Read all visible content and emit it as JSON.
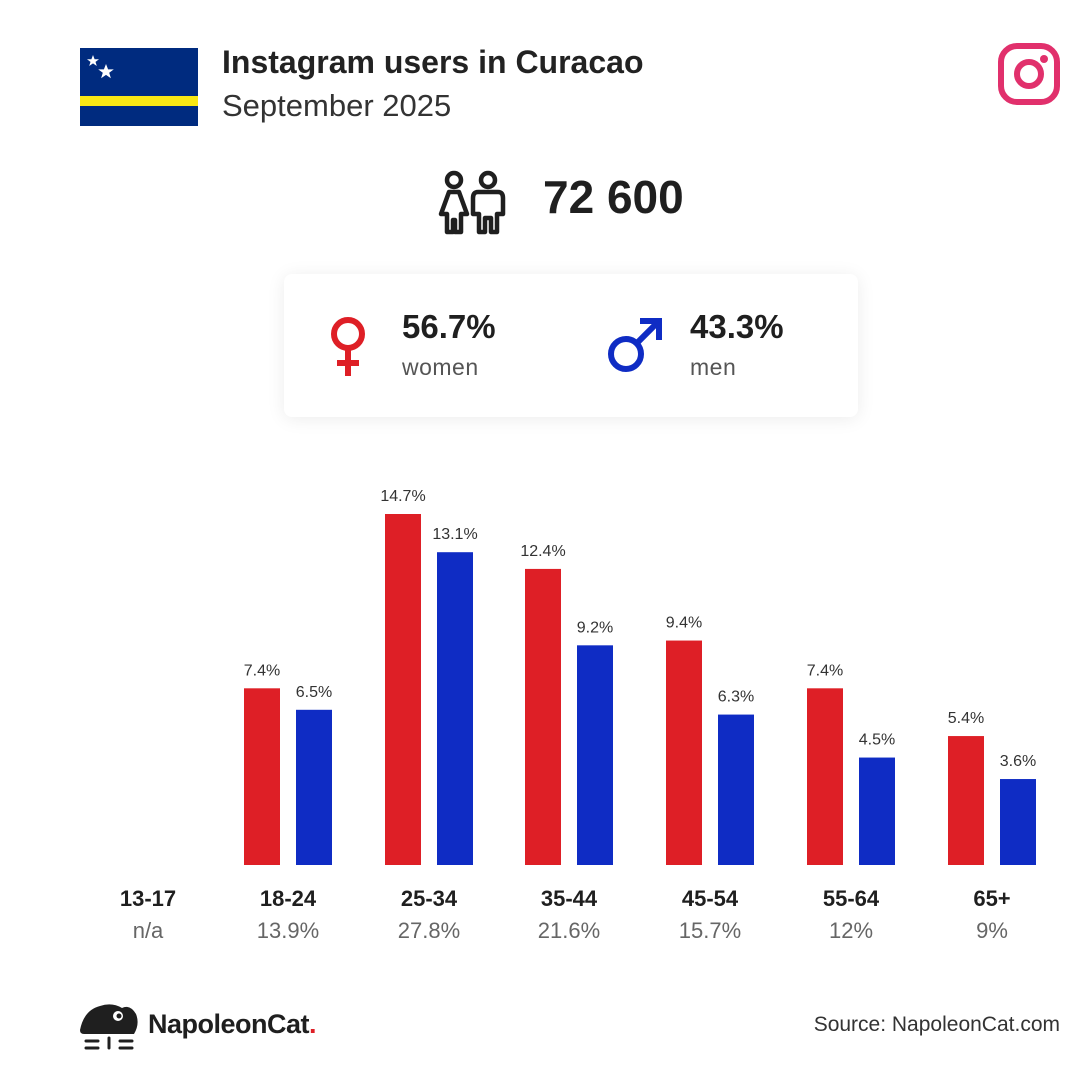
{
  "header": {
    "title": "Instagram users in Curacao",
    "subtitle": "September 2025"
  },
  "total": {
    "value": "72 600"
  },
  "gender": {
    "women": {
      "pct": "56.7%",
      "label": "women",
      "color": "#de1f26"
    },
    "men": {
      "pct": "43.3%",
      "label": "men",
      "color": "#0f2cc4"
    }
  },
  "chart_data": {
    "type": "bar",
    "categories": [
      "13-17",
      "18-24",
      "25-34",
      "35-44",
      "45-54",
      "55-64",
      "65+"
    ],
    "category_totals": [
      "n/a",
      "13.9%",
      "27.8%",
      "21.6%",
      "15.7%",
      "12%",
      "9%"
    ],
    "series": [
      {
        "name": "women",
        "color": "#de1f26",
        "values": [
          null,
          7.4,
          14.7,
          12.4,
          9.4,
          7.4,
          5.4
        ],
        "labels": [
          "",
          "7.4%",
          "14.7%",
          "12.4%",
          "9.4%",
          "7.4%",
          "5.4%"
        ]
      },
      {
        "name": "men",
        "color": "#0f2cc4",
        "values": [
          null,
          6.5,
          13.1,
          9.2,
          6.3,
          4.5,
          3.6
        ],
        "labels": [
          "",
          "6.5%",
          "13.1%",
          "9.2%",
          "6.3%",
          "4.5%",
          "3.6%"
        ]
      }
    ],
    "ylim": [
      0,
      14.7
    ],
    "grid": false,
    "legend": "none"
  },
  "footer": {
    "brand": "NapoleonCat",
    "brand_dot": ".",
    "source": "Source: NapoleonCat.com"
  },
  "colors": {
    "accent_instagram": "#e1306c",
    "flag_blue": "#002b7f",
    "flag_yellow": "#f9e814"
  },
  "icons": [
    "curacao-flag-icon",
    "instagram-icon",
    "people-icon",
    "female-icon",
    "male-icon",
    "napoleoncat-logo-icon"
  ]
}
